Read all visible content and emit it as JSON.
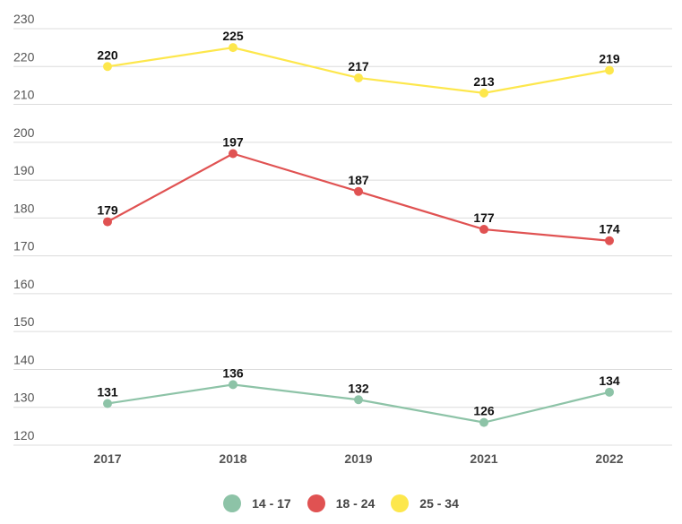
{
  "chart_data": {
    "type": "line",
    "title": "",
    "xlabel": "",
    "ylabel": "",
    "categories": [
      "2017",
      "2018",
      "2019",
      "2021",
      "2022"
    ],
    "ylim": [
      120,
      230
    ],
    "yticks": [
      "120",
      "130",
      "140",
      "150",
      "160",
      "170",
      "180",
      "190",
      "200",
      "210",
      "220",
      "230"
    ],
    "grid": true,
    "legend_position": "bottom-center",
    "series": [
      {
        "name": "14 - 17",
        "color": "#8dc3a7",
        "values": [
          131,
          136,
          132,
          126,
          134
        ]
      },
      {
        "name": "18 - 24",
        "color": "#e05252",
        "values": [
          179,
          197,
          187,
          177,
          174
        ]
      },
      {
        "name": "25 - 34",
        "color": "#fde74c",
        "values": [
          220,
          225,
          217,
          213,
          219
        ]
      }
    ]
  }
}
